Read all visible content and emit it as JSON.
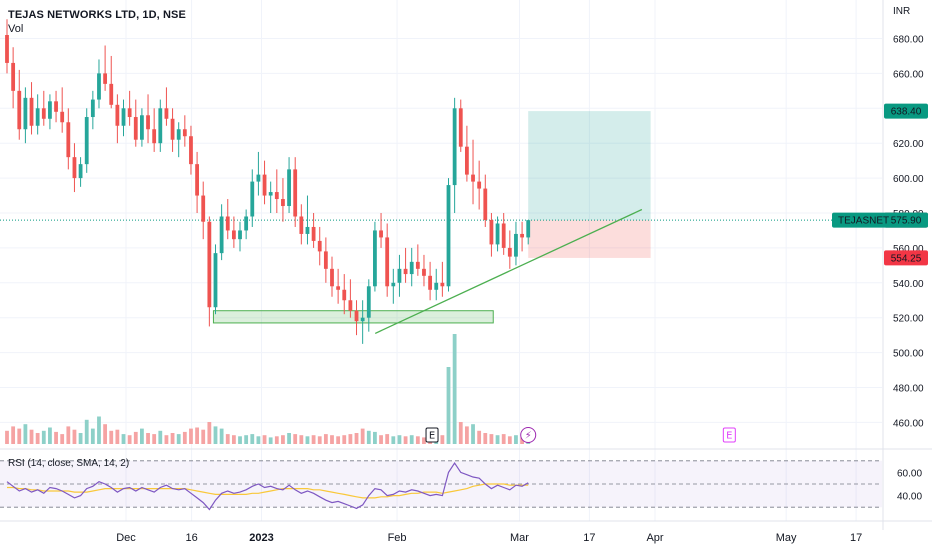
{
  "header": {
    "title": "TEJAS NETWORKS LTD, 1D, NSE",
    "volume_label": "Vol"
  },
  "price_axis": {
    "currency": "INR"
  },
  "price_labels": [
    {
      "text": "638.40",
      "value": 638.4,
      "color": "#089981",
      "text_color": "#ffffff"
    },
    {
      "text": "575.90",
      "value": 575.9,
      "color": "#2a2e39",
      "text_color": "#ffffff"
    },
    {
      "text": "554.25",
      "value": 554.25,
      "color": "#f23645",
      "text_color": "#ffffff"
    }
  ],
  "symbol_tag": {
    "name": "TEJASNET",
    "price": "575.90",
    "value": 575.9,
    "color": "#089981"
  },
  "event_markers": [
    {
      "symbol": "E",
      "kind": "earnings",
      "x": "2023-02-09",
      "color": "#131722"
    },
    {
      "symbol": "⚡",
      "kind": "corporate-event",
      "x": "2023-03-03",
      "color": "#9c27b0"
    },
    {
      "symbol": "E",
      "kind": "earnings",
      "x": "2023-04-18",
      "color": "#e040fb"
    }
  ],
  "rsi": {
    "label": "RSI (14, close, SMA, 14, 2)",
    "levels": [
      70,
      50,
      30
    ],
    "tick_labels": [
      "60.00",
      "40.00"
    ],
    "tick_values": [
      60,
      40
    ],
    "line_color": "#7e57c2",
    "sma_color": "#f9c83a"
  },
  "colors": {
    "up": "#26a69a",
    "down": "#ef5350",
    "up_volume": "#8dd0c8",
    "down_volume": "#f5a3a3"
  },
  "chart_data": {
    "type": "candlestick",
    "symbol": "TEJAS NETWORKS LTD",
    "interval": "1D",
    "exchange": "NSE",
    "ylim": [
      445,
      690
    ],
    "y_ticks": [
      680,
      660,
      640,
      620,
      600,
      580,
      560,
      540,
      520,
      500,
      480,
      460
    ],
    "y_tick_labels": [
      "680.00",
      "660.00",
      "640.00",
      "620.00",
      "600.00",
      "580.00",
      "560.00",
      "540.00",
      "520.00",
      "500.00",
      "480.00",
      "460.00"
    ],
    "x_ticks": [
      "Dec",
      "16",
      "2023",
      "Feb",
      "Mar",
      "17",
      "Apr",
      "May",
      "17"
    ],
    "x_tick_dates": [
      "2022-12-01",
      "2022-12-16",
      "2023-01-01",
      "2023-02-01",
      "2023-03-01",
      "2023-03-17",
      "2023-04-01",
      "2023-05-01",
      "2023-05-17"
    ],
    "x_range": [
      "2022-11-18",
      "2023-05-27"
    ],
    "last_price": 575.9,
    "candles": [
      [
        682,
        691,
        660,
        666
      ],
      [
        666,
        675,
        640,
        650
      ],
      [
        650,
        662,
        622,
        628
      ],
      [
        628,
        652,
        620,
        646
      ],
      [
        646,
        655,
        625,
        630
      ],
      [
        630,
        648,
        625,
        640
      ],
      [
        640,
        650,
        630,
        634
      ],
      [
        634,
        648,
        628,
        644
      ],
      [
        644,
        650,
        632,
        638
      ],
      [
        638,
        652,
        626,
        632
      ],
      [
        632,
        640,
        605,
        612
      ],
      [
        612,
        620,
        592,
        600
      ],
      [
        600,
        612,
        595,
        608
      ],
      [
        608,
        640,
        603,
        635
      ],
      [
        635,
        650,
        628,
        645
      ],
      [
        645,
        668,
        640,
        660
      ],
      [
        660,
        676,
        650,
        654
      ],
      [
        654,
        670,
        640,
        642
      ],
      [
        642,
        648,
        620,
        630
      ],
      [
        630,
        645,
        624,
        640
      ],
      [
        640,
        650,
        630,
        635
      ],
      [
        635,
        645,
        618,
        622
      ],
      [
        622,
        640,
        618,
        636
      ],
      [
        636,
        648,
        620,
        628
      ],
      [
        628,
        640,
        615,
        620
      ],
      [
        620,
        645,
        615,
        640
      ],
      [
        640,
        652,
        630,
        634
      ],
      [
        634,
        640,
        615,
        622
      ],
      [
        622,
        632,
        612,
        628
      ],
      [
        628,
        636,
        618,
        624
      ],
      [
        624,
        630,
        602,
        608
      ],
      [
        608,
        615,
        580,
        590
      ],
      [
        590,
        598,
        565,
        575
      ],
      [
        575,
        578,
        515,
        526
      ],
      [
        526,
        562,
        522,
        557
      ],
      [
        557,
        585,
        553,
        578
      ],
      [
        578,
        588,
        565,
        570
      ],
      [
        570,
        578,
        560,
        565
      ],
      [
        565,
        575,
        558,
        570
      ],
      [
        570,
        582,
        565,
        578
      ],
      [
        578,
        605,
        572,
        598
      ],
      [
        598,
        615,
        590,
        602
      ],
      [
        602,
        610,
        585,
        590
      ],
      [
        590,
        598,
        580,
        592
      ],
      [
        592,
        605,
        580,
        588
      ],
      [
        588,
        600,
        575,
        584
      ],
      [
        584,
        612,
        580,
        605
      ],
      [
        605,
        612,
        572,
        578
      ],
      [
        578,
        585,
        562,
        568
      ],
      [
        568,
        590,
        562,
        572
      ],
      [
        572,
        580,
        560,
        564
      ],
      [
        564,
        572,
        550,
        558
      ],
      [
        558,
        566,
        540,
        548
      ],
      [
        548,
        555,
        532,
        538
      ],
      [
        538,
        548,
        528,
        536
      ],
      [
        536,
        545,
        522,
        530
      ],
      [
        530,
        542,
        520,
        524
      ],
      [
        524,
        530,
        510,
        518
      ],
      [
        518,
        530,
        505,
        520
      ],
      [
        520,
        542,
        512,
        538
      ],
      [
        538,
        575,
        535,
        570
      ],
      [
        570,
        580,
        560,
        566
      ],
      [
        566,
        574,
        532,
        538
      ],
      [
        538,
        548,
        528,
        540
      ],
      [
        540,
        556,
        532,
        548
      ],
      [
        548,
        560,
        540,
        545
      ],
      [
        545,
        560,
        538,
        552
      ],
      [
        552,
        562,
        544,
        548
      ],
      [
        548,
        556,
        538,
        544
      ],
      [
        544,
        552,
        530,
        536
      ],
      [
        536,
        548,
        530,
        540
      ],
      [
        540,
        552,
        532,
        538
      ],
      [
        538,
        600,
        535,
        596
      ],
      [
        596,
        646,
        580,
        640
      ],
      [
        640,
        645,
        615,
        618
      ],
      [
        618,
        630,
        598,
        602
      ],
      [
        602,
        622,
        585,
        598
      ],
      [
        598,
        610,
        582,
        594
      ],
      [
        594,
        602,
        572,
        576
      ],
      [
        576,
        580,
        555,
        562
      ],
      [
        562,
        578,
        558,
        574
      ],
      [
        574,
        580,
        556,
        560
      ],
      [
        560,
        570,
        548,
        555
      ],
      [
        555,
        575,
        550,
        568
      ],
      [
        568,
        575,
        558,
        566
      ],
      [
        566,
        576,
        562,
        575.9
      ]
    ],
    "volume": [
      {
        "v": 12,
        "dir": "down"
      },
      {
        "v": 16,
        "dir": "down"
      },
      {
        "v": 14,
        "dir": "down"
      },
      {
        "v": 18,
        "dir": "up"
      },
      {
        "v": 13,
        "dir": "down"
      },
      {
        "v": 10,
        "dir": "down"
      },
      {
        "v": 12,
        "dir": "up"
      },
      {
        "v": 15,
        "dir": "up"
      },
      {
        "v": 11,
        "dir": "down"
      },
      {
        "v": 9,
        "dir": "down"
      },
      {
        "v": 16,
        "dir": "down"
      },
      {
        "v": 13,
        "dir": "down"
      },
      {
        "v": 10,
        "dir": "up"
      },
      {
        "v": 22,
        "dir": "up"
      },
      {
        "v": 14,
        "dir": "up"
      },
      {
        "v": 25,
        "dir": "up"
      },
      {
        "v": 18,
        "dir": "down"
      },
      {
        "v": 12,
        "dir": "down"
      },
      {
        "v": 13,
        "dir": "down"
      },
      {
        "v": 9,
        "dir": "up"
      },
      {
        "v": 8,
        "dir": "down"
      },
      {
        "v": 11,
        "dir": "down"
      },
      {
        "v": 14,
        "dir": "up"
      },
      {
        "v": 10,
        "dir": "down"
      },
      {
        "v": 9,
        "dir": "down"
      },
      {
        "v": 12,
        "dir": "up"
      },
      {
        "v": 8,
        "dir": "down"
      },
      {
        "v": 10,
        "dir": "down"
      },
      {
        "v": 9,
        "dir": "up"
      },
      {
        "v": 11,
        "dir": "down"
      },
      {
        "v": 14,
        "dir": "down"
      },
      {
        "v": 15,
        "dir": "down"
      },
      {
        "v": 13,
        "dir": "down"
      },
      {
        "v": 20,
        "dir": "down"
      },
      {
        "v": 16,
        "dir": "up"
      },
      {
        "v": 14,
        "dir": "up"
      },
      {
        "v": 9,
        "dir": "down"
      },
      {
        "v": 8,
        "dir": "down"
      },
      {
        "v": 7,
        "dir": "up"
      },
      {
        "v": 8,
        "dir": "up"
      },
      {
        "v": 9,
        "dir": "up"
      },
      {
        "v": 7,
        "dir": "up"
      },
      {
        "v": 8,
        "dir": "down"
      },
      {
        "v": 6,
        "dir": "up"
      },
      {
        "v": 7,
        "dir": "down"
      },
      {
        "v": 8,
        "dir": "down"
      },
      {
        "v": 10,
        "dir": "up"
      },
      {
        "v": 9,
        "dir": "down"
      },
      {
        "v": 8,
        "dir": "down"
      },
      {
        "v": 7,
        "dir": "up"
      },
      {
        "v": 8,
        "dir": "down"
      },
      {
        "v": 7,
        "dir": "down"
      },
      {
        "v": 9,
        "dir": "down"
      },
      {
        "v": 8,
        "dir": "down"
      },
      {
        "v": 7,
        "dir": "down"
      },
      {
        "v": 8,
        "dir": "down"
      },
      {
        "v": 9,
        "dir": "down"
      },
      {
        "v": 10,
        "dir": "down"
      },
      {
        "v": 14,
        "dir": "down"
      },
      {
        "v": 12,
        "dir": "up"
      },
      {
        "v": 11,
        "dir": "up"
      },
      {
        "v": 8,
        "dir": "down"
      },
      {
        "v": 9,
        "dir": "down"
      },
      {
        "v": 7,
        "dir": "up"
      },
      {
        "v": 8,
        "dir": "up"
      },
      {
        "v": 7,
        "dir": "down"
      },
      {
        "v": 8,
        "dir": "up"
      },
      {
        "v": 7,
        "dir": "down"
      },
      {
        "v": 6,
        "dir": "down"
      },
      {
        "v": 8,
        "dir": "down"
      },
      {
        "v": 7,
        "dir": "up"
      },
      {
        "v": 8,
        "dir": "down"
      },
      {
        "v": 70,
        "dir": "up"
      },
      {
        "v": 100,
        "dir": "up"
      },
      {
        "v": 20,
        "dir": "down"
      },
      {
        "v": 16,
        "dir": "down"
      },
      {
        "v": 18,
        "dir": "up"
      },
      {
        "v": 12,
        "dir": "down"
      },
      {
        "v": 10,
        "dir": "down"
      },
      {
        "v": 9,
        "dir": "down"
      },
      {
        "v": 8,
        "dir": "up"
      },
      {
        "v": 9,
        "dir": "down"
      },
      {
        "v": 7,
        "dir": "down"
      },
      {
        "v": 8,
        "dir": "up"
      },
      {
        "v": 6,
        "dir": "down"
      },
      {
        "v": 7,
        "dir": "up"
      }
    ],
    "rsi_values": [
      52,
      48,
      44,
      46,
      43,
      45,
      42,
      47,
      46,
      44,
      41,
      38,
      40,
      46,
      48,
      52,
      50,
      47,
      43,
      46,
      47,
      44,
      47,
      45,
      43,
      47,
      49,
      46,
      45,
      46,
      42,
      38,
      34,
      28,
      36,
      42,
      44,
      42,
      43,
      45,
      48,
      50,
      47,
      48,
      46,
      45,
      49,
      45,
      42,
      44,
      42,
      39,
      36,
      34,
      35,
      33,
      31,
      29,
      32,
      40,
      46,
      45,
      40,
      41,
      44,
      43,
      45,
      44,
      42,
      40,
      41,
      40,
      60,
      68,
      60,
      58,
      56,
      55,
      50,
      46,
      49,
      47,
      45,
      49,
      48,
      51
    ],
    "rsi_sma_values": [
      47,
      47,
      46,
      46,
      45,
      45,
      44,
      44,
      44,
      44,
      44,
      43,
      43,
      43,
      44,
      45,
      46,
      46,
      46,
      46,
      46,
      46,
      46,
      46,
      46,
      46,
      46,
      46,
      46,
      46,
      45,
      44,
      43,
      42,
      41,
      41,
      41,
      41,
      41,
      41,
      42,
      42,
      43,
      44,
      45,
      46,
      46,
      46,
      46,
      46,
      45,
      45,
      44,
      43,
      42,
      41,
      40,
      39,
      38,
      38,
      38,
      39,
      39,
      40,
      40,
      41,
      42,
      42,
      43,
      43,
      43,
      42,
      43,
      44,
      45,
      46,
      48,
      49,
      50,
      50,
      50,
      50,
      49,
      49,
      49,
      49
    ],
    "zones": {
      "support_box": {
        "x_start": "2022-12-21",
        "x_end": "2023-02-23",
        "y_low": 517,
        "y_high": 524
      },
      "target_box": {
        "x_start": "2023-03-03",
        "x_end": "2023-03-31",
        "y_low": 575.9,
        "y_high": 638.4
      },
      "stop_box": {
        "x_start": "2023-03-03",
        "x_end": "2023-03-31",
        "y_low": 554.25,
        "y_high": 575.9
      },
      "trendline": {
        "x1": "2023-01-27",
        "y1": 511,
        "x2": "2023-03-29",
        "y2": 582
      }
    }
  }
}
